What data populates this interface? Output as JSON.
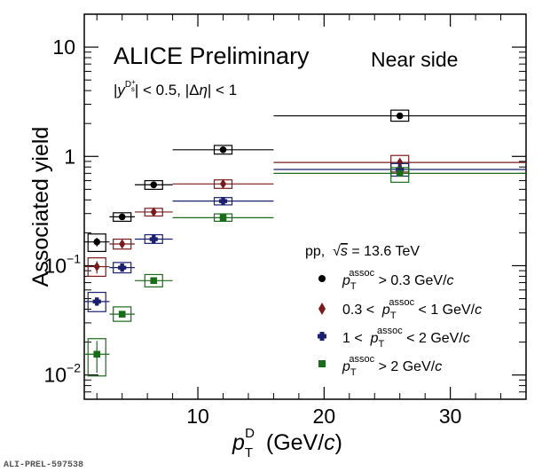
{
  "chart_data": {
    "type": "scatter",
    "title": "ALICE Preliminary",
    "subtitle": "Near side",
    "selection": {
      "rapidity": "|y^{D_s^+}| < 0.5",
      "eta": "|Δη| < 1"
    },
    "xlabel": "p_T^D (GeV/c)",
    "ylabel": "Associated yield",
    "x_scale": "linear",
    "y_scale": "log",
    "xlim": [
      1,
      36
    ],
    "ylim": [
      0.006,
      20
    ],
    "grid": false,
    "legend_placement": "bottom-right",
    "legend_header": "pp,  √s = 13.6 TeV",
    "x_ticks": [
      10,
      20,
      30
    ],
    "y_ticks": [
      {
        "value": 0.01,
        "label": "10",
        "exp": "−2"
      },
      {
        "value": 0.1,
        "label": "10",
        "exp": "−1"
      },
      {
        "value": 1,
        "label": "1"
      },
      {
        "value": 10,
        "label": "10"
      }
    ],
    "bins": [
      {
        "lo": 1,
        "hi": 3
      },
      {
        "lo": 3,
        "hi": 5
      },
      {
        "lo": 5,
        "hi": 8
      },
      {
        "lo": 8,
        "hi": 16
      },
      {
        "lo": 16,
        "hi": 36
      }
    ],
    "series": [
      {
        "name": "p_T^assoc > 0.3 GeV/c",
        "marker": "circle",
        "color": "#000000",
        "points": [
          {
            "x": 2.0,
            "y": 0.165,
            "syst_lo": 0.135,
            "syst_hi": 0.195,
            "stat_lo": 0.15,
            "stat_hi": 0.18
          },
          {
            "x": 4.0,
            "y": 0.28,
            "syst_lo": 0.255,
            "syst_hi": 0.305,
            "stat_lo": 0.27,
            "stat_hi": 0.29
          },
          {
            "x": 6.5,
            "y": 0.55,
            "syst_lo": 0.5,
            "syst_hi": 0.6,
            "stat_lo": 0.53,
            "stat_hi": 0.57
          },
          {
            "x": 12.0,
            "y": 1.15,
            "syst_lo": 1.05,
            "syst_hi": 1.26,
            "stat_lo": 1.1,
            "stat_hi": 1.2
          },
          {
            "x": 26.0,
            "y": 2.35,
            "syst_lo": 2.1,
            "syst_hi": 2.65,
            "stat_lo": 2.25,
            "stat_hi": 2.45
          }
        ]
      },
      {
        "name": "0.3 < p_T^assoc < 1 GeV/c",
        "marker": "diamond",
        "color": "#7b1a1a",
        "points": [
          {
            "x": 2.0,
            "y": 0.098,
            "syst_lo": 0.08,
            "syst_hi": 0.118,
            "stat_lo": 0.085,
            "stat_hi": 0.11
          },
          {
            "x": 4.0,
            "y": 0.158,
            "syst_lo": 0.142,
            "syst_hi": 0.175,
            "stat_lo": 0.148,
            "stat_hi": 0.168
          },
          {
            "x": 6.5,
            "y": 0.31,
            "syst_lo": 0.285,
            "syst_hi": 0.335,
            "stat_lo": 0.3,
            "stat_hi": 0.32
          },
          {
            "x": 12.0,
            "y": 0.56,
            "syst_lo": 0.51,
            "syst_hi": 0.61,
            "stat_lo": 0.54,
            "stat_hi": 0.58
          },
          {
            "x": 26.0,
            "y": 0.88,
            "syst_lo": 0.72,
            "syst_hi": 1.02,
            "stat_lo": 0.85,
            "stat_hi": 0.91
          }
        ]
      },
      {
        "name": "1 < p_T^assoc < 2 GeV/c",
        "marker": "cross",
        "color": "#1a1f6e",
        "points": [
          {
            "x": 2.0,
            "y": 0.047,
            "syst_lo": 0.038,
            "syst_hi": 0.057,
            "stat_lo": 0.043,
            "stat_hi": 0.051
          },
          {
            "x": 4.0,
            "y": 0.096,
            "syst_lo": 0.086,
            "syst_hi": 0.107,
            "stat_lo": 0.091,
            "stat_hi": 0.101
          },
          {
            "x": 6.5,
            "y": 0.175,
            "syst_lo": 0.16,
            "syst_hi": 0.192,
            "stat_lo": 0.168,
            "stat_hi": 0.182
          },
          {
            "x": 12.0,
            "y": 0.39,
            "syst_lo": 0.36,
            "syst_hi": 0.42,
            "stat_lo": 0.38,
            "stat_hi": 0.4
          },
          {
            "x": 26.0,
            "y": 0.76,
            "syst_lo": 0.66,
            "syst_hi": 0.86,
            "stat_lo": 0.73,
            "stat_hi": 0.79
          }
        ]
      },
      {
        "name": "p_T^assoc > 2 GeV/c",
        "marker": "square",
        "color": "#1a6b1a",
        "points": [
          {
            "x": 2.0,
            "y": 0.0155,
            "syst_lo": 0.0098,
            "syst_hi": 0.0215,
            "stat_lo": 0.0105,
            "stat_hi": 0.0205
          },
          {
            "x": 4.0,
            "y": 0.036,
            "syst_lo": 0.031,
            "syst_hi": 0.042,
            "stat_lo": 0.034,
            "stat_hi": 0.038
          },
          {
            "x": 6.5,
            "y": 0.073,
            "syst_lo": 0.064,
            "syst_hi": 0.083,
            "stat_lo": 0.07,
            "stat_hi": 0.076
          },
          {
            "x": 12.0,
            "y": 0.275,
            "syst_lo": 0.255,
            "syst_hi": 0.298,
            "stat_lo": 0.265,
            "stat_hi": 0.285
          },
          {
            "x": 26.0,
            "y": 0.7,
            "syst_lo": 0.58,
            "syst_hi": 0.79,
            "stat_lo": 0.67,
            "stat_hi": 0.73
          }
        ]
      }
    ]
  },
  "watermark": "ALI-PREL-597538"
}
